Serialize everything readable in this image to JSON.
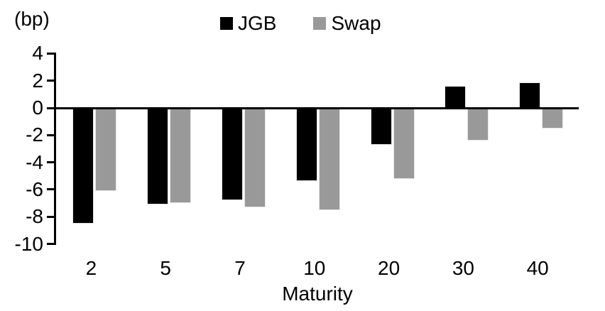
{
  "chart_data": {
    "type": "bar",
    "title": "",
    "categories": [
      "2",
      "5",
      "7",
      "10",
      "20",
      "30",
      "40"
    ],
    "series": [
      {
        "name": "JGB",
        "color": "#000000",
        "values": [
          -8.5,
          -7.1,
          -6.8,
          -5.4,
          -2.7,
          1.6,
          1.9
        ]
      },
      {
        "name": "Swap",
        "color": "#999999",
        "values": [
          -6.1,
          -7.0,
          -7.3,
          -7.5,
          -5.2,
          -2.4,
          -1.5
        ]
      }
    ],
    "xlabel": "Maturity",
    "ylabel": "(bp)",
    "ylim": [
      -10,
      4
    ],
    "yticks": [
      4,
      2,
      0,
      -2,
      -4,
      -6,
      -8,
      -10
    ],
    "legend_position": "top-center",
    "grid": false,
    "background": "#ffffff"
  }
}
